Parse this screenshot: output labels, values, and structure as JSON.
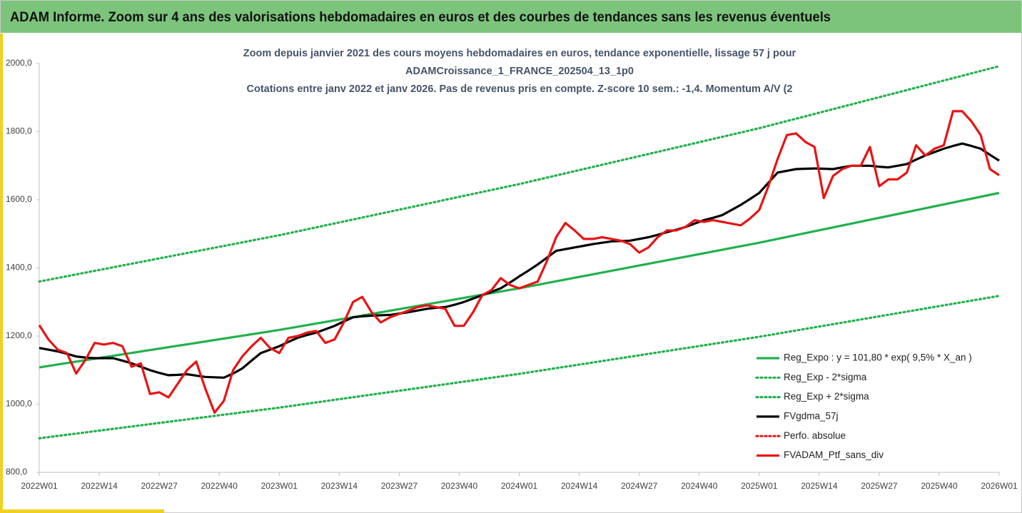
{
  "header": "ADAM Informe. Zoom sur 4 ans des valorisations hebdomadaires en euros et des courbes de tendances sans les revenus éventuels",
  "chart_data": {
    "type": "line",
    "title": [
      "Zoom depuis janvier 2021 des cours moyens hebdomadaires  en euros, tendance exponentielle, lissage 57 j pour",
      "ADAMCroissance_1_FRANCE_202504_13_1p0",
      "Cotations  entre janv 2022 et janv 2026. Pas de revenus pris en compte. Z-score 10 sem.: -1,4. Momentum A/V (2"
    ],
    "xlim": [
      0,
      208
    ],
    "xticks": [
      {
        "value": 0,
        "label": "2022W01"
      },
      {
        "value": 13,
        "label": "2022W14"
      },
      {
        "value": 26,
        "label": "2022W27"
      },
      {
        "value": 39,
        "label": "2022W40"
      },
      {
        "value": 52,
        "label": "2023W01"
      },
      {
        "value": 65,
        "label": "2023W14"
      },
      {
        "value": 78,
        "label": "2023W27"
      },
      {
        "value": 91,
        "label": "2023W40"
      },
      {
        "value": 104,
        "label": "2024W01"
      },
      {
        "value": 117,
        "label": "2024W14"
      },
      {
        "value": 130,
        "label": "2024W27"
      },
      {
        "value": 143,
        "label": "2024W40"
      },
      {
        "value": 156,
        "label": "2025W01"
      },
      {
        "value": 169,
        "label": "2025W14"
      },
      {
        "value": 182,
        "label": "2025W27"
      },
      {
        "value": 195,
        "label": "2025W40"
      },
      {
        "value": 208,
        "label": "2026W01"
      }
    ],
    "ylim": [
      800,
      2000
    ],
    "yticks": [
      {
        "value": 800,
        "label": "800,0"
      },
      {
        "value": 1000,
        "label": "1000,0"
      },
      {
        "value": 1200,
        "label": "1200,0"
      },
      {
        "value": 1400,
        "label": "1400,0"
      },
      {
        "value": 1600,
        "label": "1600,0"
      },
      {
        "value": 1800,
        "label": "1800,0"
      },
      {
        "value": 2000,
        "label": "2000,0"
      }
    ],
    "grid": false,
    "legend": "lower right",
    "x": [
      0,
      2,
      4,
      6,
      8,
      10,
      12,
      14,
      16,
      18,
      20,
      22,
      24,
      26,
      28,
      30,
      32,
      34,
      36,
      38,
      40,
      42,
      44,
      46,
      48,
      50,
      52,
      54,
      56,
      58,
      60,
      62,
      64,
      66,
      68,
      70,
      72,
      74,
      76,
      78,
      80,
      82,
      84,
      86,
      88,
      90,
      92,
      94,
      96,
      98,
      100,
      102,
      104,
      106,
      108,
      110,
      112,
      114,
      116,
      118,
      120,
      122,
      124,
      126,
      128,
      130,
      132,
      134,
      136,
      138,
      140,
      142,
      144,
      146,
      148,
      150,
      152,
      154,
      156,
      158,
      160,
      162,
      164,
      166,
      168,
      170,
      172,
      174,
      176,
      178,
      180,
      182,
      184,
      186,
      188,
      190,
      192,
      194,
      196,
      198,
      200,
      202,
      204,
      206,
      208
    ],
    "series": [
      {
        "name": "Reg_Expo : y = 101,80 * exp( 9,5% *  X_an )",
        "color": "#22b14c",
        "style": "solid",
        "x": [
          0,
          52,
          104,
          156,
          208
        ],
        "values": [
          1108,
          1218,
          1340,
          1474,
          1620
        ]
      },
      {
        "name": "Reg_Exp - 2*sigma",
        "color": "#22b14c",
        "style": "dotted",
        "x": [
          0,
          52,
          104,
          156,
          208
        ],
        "values": [
          900,
          990,
          1089,
          1198,
          1318
        ]
      },
      {
        "name": "Reg_Exp + 2*sigma",
        "color": "#22b14c",
        "style": "dotted",
        "x": [
          0,
          52,
          104,
          156,
          208
        ],
        "values": [
          1360,
          1496,
          1646,
          1810,
          1992
        ]
      },
      {
        "name": "FVgdma_57j",
        "color": "#000000",
        "style": "solid",
        "values": [
          1165,
          1160,
          1155,
          1148,
          1140,
          1137,
          1135,
          1135,
          1135,
          1128,
          1120,
          1110,
          1100,
          1092,
          1085,
          1086,
          1088,
          1084,
          1080,
          1079,
          1078,
          1090,
          1105,
          1128,
          1150,
          1160,
          1170,
          1183,
          1195,
          1203,
          1210,
          1220,
          1230,
          1243,
          1255,
          1258,
          1260,
          1261,
          1262,
          1266,
          1270,
          1275,
          1280,
          1283,
          1285,
          1292,
          1300,
          1310,
          1320,
          1330,
          1340,
          1357,
          1375,
          1392,
          1410,
          1430,
          1450,
          1455,
          1460,
          1465,
          1470,
          1474,
          1478,
          1479,
          1480,
          1485,
          1490,
          1497,
          1505,
          1512,
          1520,
          1530,
          1540,
          1547,
          1555,
          1570,
          1585,
          1602,
          1620,
          1650,
          1680,
          1685,
          1690,
          1691,
          1692,
          1691,
          1690,
          1695,
          1700,
          1700,
          1700,
          1697,
          1695,
          1700,
          1705,
          1718,
          1730,
          1740,
          1750,
          1758,
          1765,
          1758,
          1750,
          1732,
          1715
        ]
      },
      {
        "name": "Perfo. absolue",
        "color": "#e02020",
        "style": "dotted",
        "x": [],
        "values": []
      },
      {
        "name": "FVADAM_Ptf_sans_div",
        "color": "#e81414",
        "style": "solid",
        "values": [
          1232,
          1190,
          1160,
          1150,
          1090,
          1130,
          1180,
          1175,
          1180,
          1170,
          1110,
          1120,
          1030,
          1035,
          1020,
          1060,
          1100,
          1125,
          1045,
          975,
          1010,
          1100,
          1140,
          1170,
          1195,
          1165,
          1150,
          1195,
          1200,
          1210,
          1215,
          1180,
          1190,
          1240,
          1300,
          1315,
          1270,
          1240,
          1255,
          1265,
          1275,
          1285,
          1290,
          1285,
          1280,
          1230,
          1230,
          1270,
          1320,
          1335,
          1370,
          1350,
          1340,
          1350,
          1360,
          1420,
          1490,
          1532,
          1510,
          1485,
          1485,
          1490,
          1485,
          1480,
          1470,
          1445,
          1460,
          1490,
          1510,
          1510,
          1520,
          1540,
          1535,
          1540,
          1535,
          1530,
          1525,
          1545,
          1570,
          1640,
          1720,
          1790,
          1795,
          1770,
          1755,
          1605,
          1670,
          1690,
          1700,
          1700,
          1755,
          1640,
          1660,
          1660,
          1680,
          1760,
          1730,
          1750,
          1760,
          1860,
          1860,
          1830,
          1790,
          1690,
          1672
        ]
      }
    ]
  }
}
